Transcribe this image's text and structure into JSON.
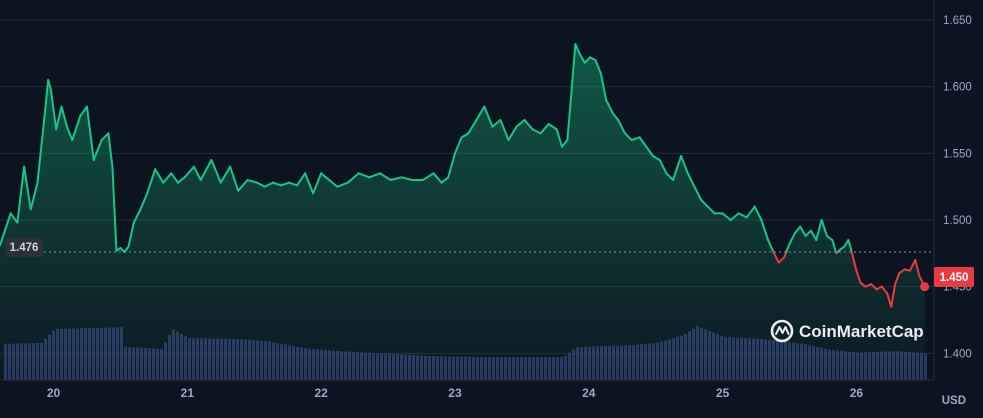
{
  "chart_data": {
    "type": "line",
    "currency_label": "USD",
    "brand": "CoinMarketCap",
    "reference_price": 1.476,
    "reference_label": "1.476",
    "current_price": 1.45,
    "current_label": "1.450",
    "ylim": [
      1.38,
      1.665
    ],
    "y_ticks": [
      1.4,
      1.45,
      1.5,
      1.55,
      1.6,
      1.65
    ],
    "y_tick_labels": [
      "1.400",
      "1.450",
      "1.500",
      "1.550",
      "1.600",
      "1.650"
    ],
    "x_range": [
      19.6,
      26.58
    ],
    "x_ticks": [
      20,
      21,
      22,
      23,
      24,
      25,
      26
    ],
    "x_tick_labels": [
      "20",
      "21",
      "22",
      "23",
      "24",
      "25",
      "26"
    ],
    "colors": {
      "background": "#0d1421",
      "grid": "#222a3b",
      "up": "#16c784",
      "down": "#ea3943",
      "volume": "#2a3560",
      "reference_line": "#8a8f9c"
    },
    "series": [
      {
        "values": [
          [
            19.6,
            1.481
          ],
          [
            19.68,
            1.505
          ],
          [
            19.73,
            1.498
          ],
          [
            19.78,
            1.54
          ],
          [
            19.83,
            1.508
          ],
          [
            19.88,
            1.528
          ],
          [
            19.93,
            1.575
          ],
          [
            19.96,
            1.605
          ],
          [
            19.98,
            1.598
          ],
          [
            20.02,
            1.568
          ],
          [
            20.06,
            1.585
          ],
          [
            20.1,
            1.57
          ],
          [
            20.14,
            1.56
          ],
          [
            20.2,
            1.578
          ],
          [
            20.25,
            1.585
          ],
          [
            20.3,
            1.545
          ],
          [
            20.36,
            1.56
          ],
          [
            20.41,
            1.565
          ],
          [
            20.44,
            1.54
          ],
          [
            20.47,
            1.477
          ],
          [
            20.5,
            1.479
          ],
          [
            20.53,
            1.476
          ],
          [
            20.56,
            1.48
          ],
          [
            20.6,
            1.498
          ],
          [
            20.65,
            1.508
          ],
          [
            20.7,
            1.52
          ],
          [
            20.76,
            1.538
          ],
          [
            20.82,
            1.528
          ],
          [
            20.88,
            1.535
          ],
          [
            20.93,
            1.528
          ],
          [
            20.98,
            1.532
          ],
          [
            21.05,
            1.54
          ],
          [
            21.1,
            1.53
          ],
          [
            21.18,
            1.545
          ],
          [
            21.25,
            1.528
          ],
          [
            21.32,
            1.54
          ],
          [
            21.38,
            1.522
          ],
          [
            21.45,
            1.53
          ],
          [
            21.52,
            1.528
          ],
          [
            21.58,
            1.525
          ],
          [
            21.64,
            1.528
          ],
          [
            21.7,
            1.526
          ],
          [
            21.76,
            1.528
          ],
          [
            21.82,
            1.526
          ],
          [
            21.88,
            1.535
          ],
          [
            21.94,
            1.52
          ],
          [
            22.0,
            1.535
          ],
          [
            22.06,
            1.53
          ],
          [
            22.12,
            1.525
          ],
          [
            22.2,
            1.528
          ],
          [
            22.28,
            1.535
          ],
          [
            22.36,
            1.532
          ],
          [
            22.44,
            1.535
          ],
          [
            22.52,
            1.53
          ],
          [
            22.6,
            1.532
          ],
          [
            22.68,
            1.53
          ],
          [
            22.76,
            1.53
          ],
          [
            22.84,
            1.535
          ],
          [
            22.9,
            1.528
          ],
          [
            22.95,
            1.532
          ],
          [
            23.0,
            1.55
          ],
          [
            23.05,
            1.562
          ],
          [
            23.1,
            1.565
          ],
          [
            23.16,
            1.575
          ],
          [
            23.22,
            1.585
          ],
          [
            23.28,
            1.57
          ],
          [
            23.34,
            1.575
          ],
          [
            23.4,
            1.56
          ],
          [
            23.46,
            1.57
          ],
          [
            23.52,
            1.575
          ],
          [
            23.58,
            1.568
          ],
          [
            23.64,
            1.565
          ],
          [
            23.7,
            1.572
          ],
          [
            23.76,
            1.568
          ],
          [
            23.8,
            1.555
          ],
          [
            23.84,
            1.56
          ],
          [
            23.87,
            1.595
          ],
          [
            23.9,
            1.632
          ],
          [
            23.93,
            1.625
          ],
          [
            23.97,
            1.618
          ],
          [
            24.01,
            1.622
          ],
          [
            24.05,
            1.62
          ],
          [
            24.09,
            1.61
          ],
          [
            24.13,
            1.59
          ],
          [
            24.18,
            1.58
          ],
          [
            24.22,
            1.575
          ],
          [
            24.27,
            1.565
          ],
          [
            24.32,
            1.56
          ],
          [
            24.38,
            1.562
          ],
          [
            24.43,
            1.555
          ],
          [
            24.48,
            1.548
          ],
          [
            24.53,
            1.545
          ],
          [
            24.58,
            1.535
          ],
          [
            24.63,
            1.53
          ],
          [
            24.69,
            1.548
          ],
          [
            24.74,
            1.535
          ],
          [
            24.79,
            1.525
          ],
          [
            24.84,
            1.515
          ],
          [
            24.89,
            1.51
          ],
          [
            24.94,
            1.505
          ],
          [
            25.0,
            1.505
          ],
          [
            25.06,
            1.5
          ],
          [
            25.12,
            1.505
          ],
          [
            25.18,
            1.502
          ],
          [
            25.24,
            1.51
          ],
          [
            25.29,
            1.5
          ],
          [
            25.34,
            1.485
          ],
          [
            25.38,
            1.476
          ],
          [
            25.42,
            1.468
          ],
          [
            25.46,
            1.472
          ],
          [
            25.5,
            1.482
          ],
          [
            25.54,
            1.49
          ],
          [
            25.58,
            1.495
          ],
          [
            25.62,
            1.488
          ],
          [
            25.66,
            1.492
          ],
          [
            25.7,
            1.485
          ],
          [
            25.74,
            1.5
          ],
          [
            25.78,
            1.488
          ],
          [
            25.82,
            1.485
          ],
          [
            25.85,
            1.475
          ],
          [
            25.88,
            1.478
          ],
          [
            25.91,
            1.48
          ],
          [
            25.94,
            1.485
          ],
          [
            25.96,
            1.478
          ],
          [
            26.0,
            1.462
          ],
          [
            26.03,
            1.453
          ],
          [
            26.07,
            1.45
          ],
          [
            26.11,
            1.452
          ],
          [
            26.15,
            1.448
          ],
          [
            26.19,
            1.45
          ],
          [
            26.23,
            1.445
          ],
          [
            26.26,
            1.435
          ],
          [
            26.29,
            1.452
          ],
          [
            26.32,
            1.46
          ],
          [
            26.36,
            1.463
          ],
          [
            26.4,
            1.462
          ],
          [
            26.44,
            1.47
          ],
          [
            26.47,
            1.458
          ],
          [
            26.51,
            1.45
          ]
        ]
      }
    ],
    "volume": {
      "x": [
        19.6,
        19.9,
        20.0,
        20.5,
        20.52,
        20.8,
        20.88,
        21.0,
        21.4,
        21.6,
        21.9,
        22.2,
        22.5,
        22.8,
        23.2,
        23.8,
        23.9,
        24.3,
        24.5,
        24.7,
        24.8,
        25.0,
        25.3,
        25.6,
        25.8,
        26.0,
        26.3,
        26.5
      ],
      "values": [
        60,
        62,
        85,
        88,
        55,
        52,
        85,
        70,
        68,
        64,
        52,
        47,
        44,
        40,
        38,
        38,
        55,
        58,
        62,
        75,
        90,
        72,
        68,
        60,
        50,
        46,
        48,
        45
      ]
    }
  }
}
